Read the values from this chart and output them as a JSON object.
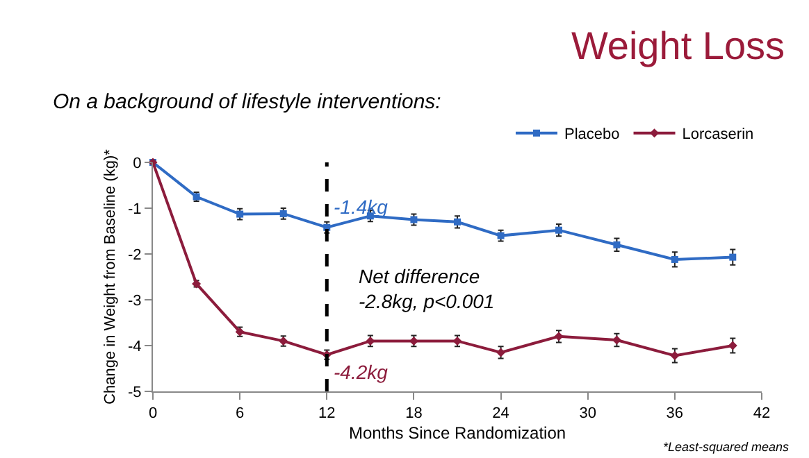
{
  "chart_data": {
    "type": "line",
    "title": "Weight Loss",
    "subtitle": "On a background of lifestyle interventions:",
    "xlabel": "Months Since Randomization",
    "ylabel": "Change in Weight from Baseline (kg)*",
    "x": [
      0,
      3,
      6,
      9,
      12,
      15,
      18,
      21,
      24,
      28,
      32,
      36,
      40
    ],
    "series": [
      {
        "name": "Placebo",
        "color": "#2f6bc4",
        "marker": "square",
        "values": [
          0,
          -0.75,
          -1.13,
          -1.12,
          -1.42,
          -1.17,
          -1.25,
          -1.3,
          -1.6,
          -1.48,
          -1.8,
          -2.12,
          -2.07
        ],
        "errors": [
          null,
          0.1,
          0.12,
          0.12,
          0.12,
          0.12,
          0.12,
          0.13,
          0.12,
          0.13,
          0.14,
          0.16,
          0.17
        ]
      },
      {
        "name": "Lorcaserin",
        "color": "#8c1c3c",
        "marker": "diamond",
        "values": [
          0,
          -2.65,
          -3.7,
          -3.9,
          -4.2,
          -3.9,
          -3.9,
          -3.9,
          -4.15,
          -3.8,
          -3.88,
          -4.22,
          -4.0
        ],
        "errors": [
          null,
          0.07,
          0.1,
          0.11,
          0.1,
          0.12,
          0.12,
          0.12,
          0.13,
          0.13,
          0.14,
          0.15,
          0.16
        ]
      }
    ],
    "xlim": [
      0,
      42
    ],
    "xticks": [
      0,
      6,
      12,
      18,
      24,
      30,
      36,
      42
    ],
    "ylim": [
      -5,
      0
    ],
    "yticks": [
      -5,
      -4,
      -3,
      -2,
      -1,
      0
    ],
    "ref_lines": [
      {
        "axis": "x",
        "value": 12,
        "color": "#000000",
        "line_style": "dashed"
      }
    ],
    "annotations": [
      {
        "text": "-1.4kg",
        "x": 12,
        "y": -1.4
      },
      {
        "text": "-4.2kg",
        "x": 12,
        "y": -4.2
      },
      "Net difference\n-2.8kg, p<0.001",
      "*Least-squared means"
    ],
    "grid": false,
    "legend": "top right",
    "line_style": "solid"
  }
}
